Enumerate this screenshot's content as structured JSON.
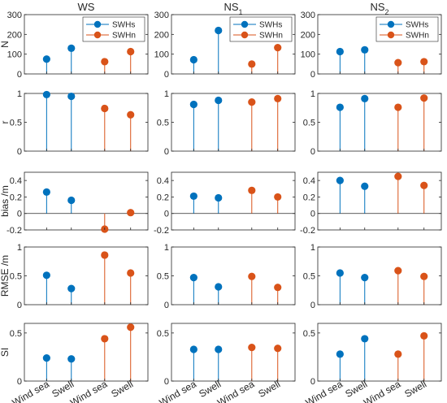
{
  "chart_data": {
    "type": "stem",
    "grid": false,
    "columns": [
      {
        "title": "WS"
      },
      {
        "title": "NS",
        "title_sub": "1"
      },
      {
        "title": "NS",
        "title_sub": "2"
      }
    ],
    "categories": [
      "Wind sea",
      "Swell",
      "Wind sea",
      "Swell"
    ],
    "legend": {
      "placement": "top-right",
      "entries": [
        {
          "name": "SWHs",
          "color": "#0072BD"
        },
        {
          "name": "SWHn",
          "color": "#D95319"
        }
      ]
    },
    "rows": [
      {
        "ylabel": "N",
        "ylim": [
          0,
          300
        ],
        "yticks": [
          0,
          100,
          200,
          300
        ],
        "values": [
          [
            75,
            130,
            62,
            113
          ],
          [
            72,
            220,
            50,
            133
          ],
          [
            113,
            122,
            57,
            62
          ]
        ]
      },
      {
        "ylabel": "r",
        "ylim": [
          0,
          1
        ],
        "yticks": [
          0,
          0.5,
          1
        ],
        "values": [
          [
            0.98,
            0.95,
            0.74,
            0.63
          ],
          [
            0.81,
            0.88,
            0.85,
            0.91
          ],
          [
            0.76,
            0.91,
            0.76,
            0.92
          ]
        ]
      },
      {
        "ylabel": "bias /m",
        "ylim": [
          -0.2,
          0.5
        ],
        "yticks": [
          -0.2,
          0,
          0.2,
          0.4
        ],
        "values": [
          [
            0.26,
            0.16,
            -0.19,
            0.01
          ],
          [
            0.21,
            0.19,
            0.28,
            0.2
          ],
          [
            0.4,
            0.33,
            0.45,
            0.34
          ]
        ]
      },
      {
        "ylabel": "RMSE /m",
        "ylim": [
          0,
          1
        ],
        "yticks": [
          0,
          0.5,
          1
        ],
        "values": [
          [
            0.51,
            0.28,
            0.86,
            0.55
          ],
          [
            0.47,
            0.31,
            0.49,
            0.3
          ],
          [
            0.55,
            0.47,
            0.59,
            0.49
          ]
        ]
      },
      {
        "ylabel": "SI",
        "ylim": [
          0,
          0.6
        ],
        "yticks": [
          0,
          0.5
        ],
        "values": [
          [
            0.24,
            0.23,
            0.44,
            0.56
          ],
          [
            0.33,
            0.33,
            0.35,
            0.34
          ],
          [
            0.28,
            0.44,
            0.28,
            0.47
          ]
        ]
      }
    ]
  }
}
